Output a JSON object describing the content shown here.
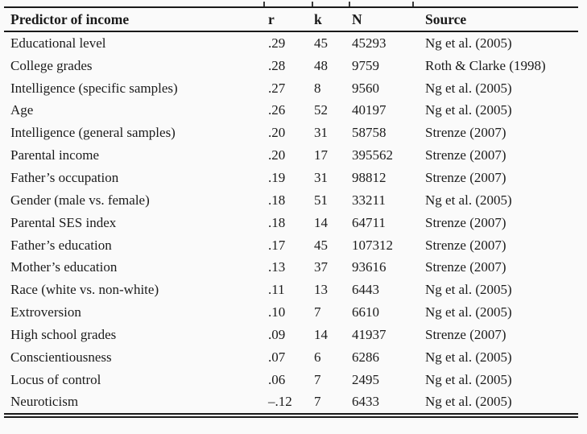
{
  "colors": {
    "background": "#fafafa",
    "text": "#1b1b1b",
    "rule": "#1a1a1a"
  },
  "table": {
    "columns": [
      {
        "key": "predictor",
        "label": "Predictor of income"
      },
      {
        "key": "r",
        "label": "r"
      },
      {
        "key": "k",
        "label": "k"
      },
      {
        "key": "N",
        "label": "N"
      },
      {
        "key": "source",
        "label": "Source"
      }
    ],
    "rows": [
      [
        "Educational level",
        ".29",
        "45",
        "45293",
        "Ng et al. (2005)"
      ],
      [
        "College grades",
        ".28",
        "48",
        "9759",
        "Roth & Clarke (1998)"
      ],
      [
        "Intelligence (specific samples)",
        ".27",
        "8",
        "9560",
        "Ng et al. (2005)"
      ],
      [
        "Age",
        ".26",
        "52",
        "40197",
        "Ng et al. (2005)"
      ],
      [
        "Intelligence (general samples)",
        ".20",
        "31",
        "58758",
        "Strenze (2007)"
      ],
      [
        "Parental income",
        ".20",
        "17",
        "395562",
        "Strenze (2007)"
      ],
      [
        "Father’s occupation",
        ".19",
        "31",
        "98812",
        "Strenze (2007)"
      ],
      [
        "Gender (male vs. female)",
        ".18",
        "51",
        "33211",
        "Ng et al. (2005)"
      ],
      [
        "Parental SES index",
        ".18",
        "14",
        "64711",
        "Strenze (2007)"
      ],
      [
        "Father’s education",
        ".17",
        "45",
        "107312",
        "Strenze (2007)"
      ],
      [
        "Mother’s education",
        ".13",
        "37",
        "93616",
        "Strenze (2007)"
      ],
      [
        "Race (white vs. non-white)",
        ".11",
        "13",
        "6443",
        "Ng et al. (2005)"
      ],
      [
        "Extroversion",
        ".10",
        "7",
        "6610",
        "Ng et al. (2005)"
      ],
      [
        "High school grades",
        ".09",
        "14",
        "41937",
        "Strenze (2007)"
      ],
      [
        "Conscientiousness",
        ".07",
        "6",
        "6286",
        "Ng et al. (2005)"
      ],
      [
        "Locus of control",
        ".06",
        "7",
        "2495",
        "Ng et al. (2005)"
      ],
      [
        "Neuroticism",
        "–.12",
        "7",
        "6433",
        "Ng et al. (2005)"
      ]
    ]
  }
}
